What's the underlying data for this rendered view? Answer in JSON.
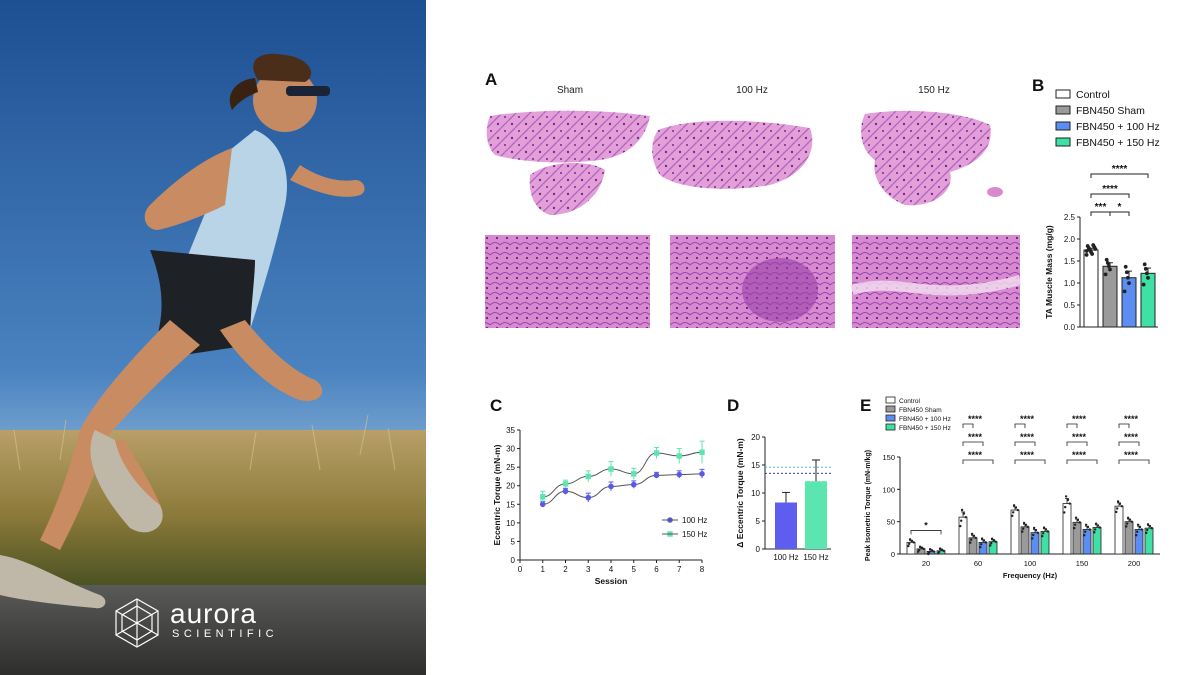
{
  "brand": {
    "name": "aurora",
    "sub": "SCIENTIFIC"
  },
  "panels": {
    "a": "A",
    "b": "B",
    "c": "C",
    "d": "D",
    "e": "E"
  },
  "histology": {
    "titles": [
      "Sham",
      "100 Hz",
      "150 Hz"
    ]
  },
  "colors": {
    "control": "#ffffff",
    "sham": "#9a9a9a",
    "hz100": "#5b8ef0",
    "hz150": "#3ee0a4",
    "purple": "#5a5ae6",
    "purple_bar": "#5d5df0",
    "teal": "#5be6b0",
    "stain_pink": "#e3a0d8",
    "stain_purple": "#8a3aa0"
  },
  "chart_data": [
    {
      "id": "B",
      "type": "bar",
      "categories": [
        "Control",
        "FBN450 Sham",
        "FBN450 + 100 Hz",
        "FBN450 + 150 Hz"
      ],
      "values": [
        1.75,
        1.38,
        1.12,
        1.22
      ],
      "errors": [
        0.04,
        0.08,
        0.15,
        0.12
      ],
      "legend": [
        "Control",
        "FBN450 Sham",
        "FBN450 + 100 Hz",
        "FBN450 + 150 Hz"
      ],
      "legend_position": "top",
      "ylabel": "TA Muscle Mass (mg/g)",
      "ylim": [
        0,
        2.5
      ],
      "yticks": [
        "0.0",
        "0.5",
        "1.0",
        "1.5",
        "2.0",
        "2.5"
      ],
      "significance": [
        "***",
        "*",
        "****",
        "****"
      ]
    },
    {
      "id": "C",
      "type": "line",
      "x": [
        1,
        2,
        3,
        4,
        5,
        6,
        7,
        8
      ],
      "series": [
        {
          "name": "100 Hz",
          "values": [
            15,
            18.5,
            16.8,
            19.8,
            20.3,
            22.8,
            23,
            23.2
          ],
          "errors": [
            0.8,
            0.8,
            1.2,
            1.2,
            1.0,
            0.8,
            1.0,
            1.2
          ]
        },
        {
          "name": "150 Hz",
          "values": [
            17,
            20.5,
            22.5,
            24.5,
            23.2,
            28.8,
            28,
            29
          ],
          "errors": [
            1.5,
            1.0,
            1.5,
            2.0,
            1.5,
            1.5,
            2.0,
            3.0
          ]
        }
      ],
      "xlabel": "Session",
      "ylabel": "Eccentric Torque (mN-m)",
      "xlim": [
        0,
        8
      ],
      "ylim": [
        0,
        35
      ],
      "xticks": [
        "0",
        "1",
        "2",
        "3",
        "4",
        "5",
        "6",
        "7",
        "8"
      ],
      "yticks": [
        "0",
        "5",
        "10",
        "15",
        "20",
        "25",
        "30",
        "35"
      ],
      "legend_position": "bottom-right"
    },
    {
      "id": "D",
      "type": "bar",
      "categories": [
        "100 Hz",
        "150 Hz"
      ],
      "values": [
        8.3,
        12.1
      ],
      "errors": [
        1.8,
        3.8
      ],
      "ylabel": "Δ Eccentric Torque (mN-m)",
      "ylim": [
        0,
        20
      ],
      "yticks": [
        "0",
        "5",
        "10",
        "15",
        "20"
      ],
      "reference_lines": [
        13.5,
        14.6
      ]
    },
    {
      "id": "E",
      "type": "bar",
      "categories": [
        "20",
        "60",
        "100",
        "150",
        "200"
      ],
      "series": [
        {
          "name": "Control",
          "values": [
            18,
            57,
            68,
            78,
            74
          ],
          "errors": [
            3,
            8,
            5,
            8,
            5
          ]
        },
        {
          "name": "FBN450 Sham",
          "values": [
            8,
            25,
            42,
            49,
            50
          ],
          "errors": [
            2,
            4,
            4,
            5,
            4
          ]
        },
        {
          "name": "FBN450 + 100 Hz",
          "values": [
            4,
            18,
            33,
            38,
            38
          ],
          "errors": [
            2,
            4,
            5,
            5,
            5
          ]
        },
        {
          "name": "FBN450 + 150 Hz",
          "values": [
            5,
            19,
            35,
            41,
            40
          ],
          "errors": [
            2,
            3,
            4,
            4,
            4
          ]
        }
      ],
      "xlabel": "Frequency (Hz)",
      "ylabel": "Peak Isometric Torque (mN-m/kg)",
      "ylim": [
        0,
        150
      ],
      "yticks": [
        "0",
        "50",
        "100",
        "150"
      ],
      "legend_position": "top-left",
      "significance_20": "*",
      "significance_other": "****"
    }
  ]
}
